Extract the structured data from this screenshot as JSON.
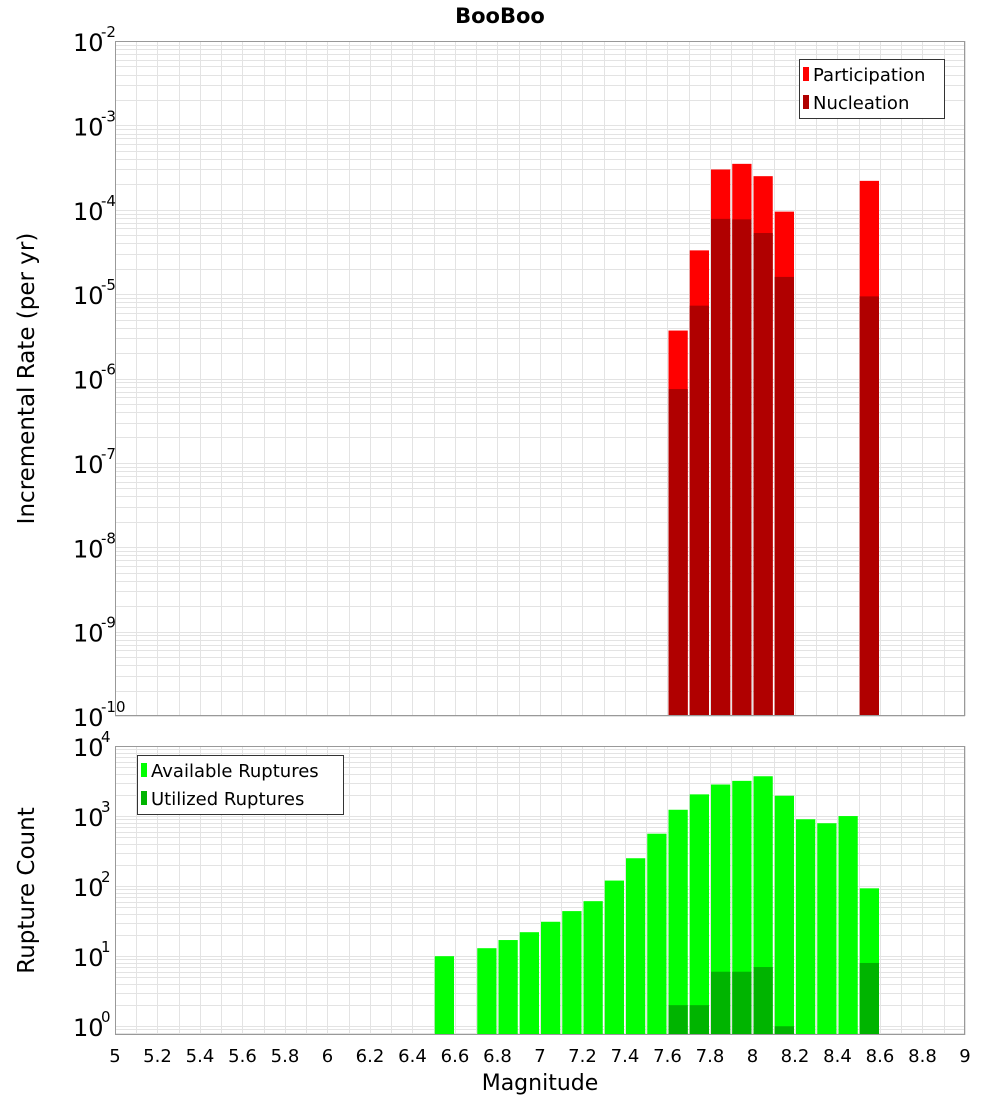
{
  "chart_data": [
    {
      "type": "bar",
      "title": "BooBoo",
      "xlabel": "",
      "ylabel": "Incremental Rate (per yr)",
      "x_range": [
        5,
        9
      ],
      "y_scale": "log",
      "ylim": [
        1e-10,
        0.01
      ],
      "y_tick_exponents": [
        "-10",
        "-9",
        "-8",
        "-7",
        "-6",
        "-5",
        "-4",
        "-3",
        "-2"
      ],
      "grid": true,
      "legend_position": "top-right",
      "bar_width": 0.1,
      "x": [
        7.65,
        7.75,
        7.85,
        7.95,
        8.05,
        8.15,
        8.55
      ],
      "series": [
        {
          "name": "Participation",
          "color": "#ff0000",
          "values": [
            3.7e-06,
            3.3e-05,
            0.0003,
            0.00035,
            0.00025,
            9.5e-05,
            0.00022
          ]
        },
        {
          "name": "Nucleation",
          "color": "#b00000",
          "values": [
            7.5e-07,
            7.3e-06,
            7.8e-05,
            7.7e-05,
            5.3e-05,
            1.6e-05,
            9.4e-06
          ]
        }
      ]
    },
    {
      "type": "bar",
      "xlabel": "Magnitude",
      "ylabel": "Rupture Count",
      "x_range": [
        5,
        9
      ],
      "x_ticks": [
        "5",
        "5.2",
        "5.4",
        "5.6",
        "5.8",
        "6",
        "6.2",
        "6.4",
        "6.6",
        "6.8",
        "7",
        "7.2",
        "7.4",
        "7.6",
        "7.8",
        "8",
        "8.2",
        "8.4",
        "8.6",
        "8.8",
        "9"
      ],
      "y_scale": "log",
      "ylim": [
        0.75,
        10000
      ],
      "y_tick_exponents": [
        "0",
        "1",
        "2",
        "3",
        "4"
      ],
      "grid": true,
      "legend_position": "top-left",
      "bar_width": 0.1,
      "x": [
        6.55,
        6.75,
        6.85,
        6.95,
        7.05,
        7.15,
        7.25,
        7.35,
        7.45,
        7.55,
        7.65,
        7.75,
        7.85,
        7.95,
        8.05,
        8.15,
        8.25,
        8.35,
        8.45,
        8.55
      ],
      "series": [
        {
          "name": "Available Ruptures",
          "color": "#00ff00",
          "values": [
            10,
            13,
            17,
            22,
            31,
            44,
            61,
            120,
            250,
            560,
            1230,
            2040,
            2820,
            3180,
            3700,
            1950,
            900,
            790,
            1000,
            93
          ]
        },
        {
          "name": "Utilized Ruptures",
          "color": "#00b400",
          "values": [
            0,
            0,
            0,
            0,
            0,
            0,
            0,
            0,
            0,
            0,
            2,
            2,
            6,
            6,
            7,
            1,
            0,
            0,
            0,
            8
          ]
        }
      ]
    }
  ]
}
